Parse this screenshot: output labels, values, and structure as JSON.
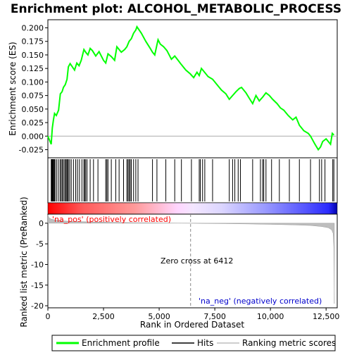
{
  "chart_data": {
    "type": "line",
    "title": "Enrichment plot: ALCOHOL_METABOLIC_PROCESS",
    "top_panel": {
      "ylabel": "Enrichment score (ES)",
      "ylim": [
        -0.04,
        0.215
      ],
      "yticks": [
        -0.025,
        0.0,
        0.025,
        0.05,
        0.075,
        0.1,
        0.125,
        0.15,
        0.175,
        0.2
      ],
      "ytick_labels": [
        "-0.025",
        "0.000",
        "0.025",
        "0.050",
        "0.075",
        "0.100",
        "0.125",
        "0.150",
        "0.175",
        "0.200"
      ],
      "series": [
        {
          "name": "Enrichment profile",
          "color": "#00ff00",
          "x": [
            0,
            150,
            200,
            250,
            300,
            380,
            480,
            560,
            640,
            700,
            780,
            860,
            920,
            1000,
            1100,
            1200,
            1300,
            1400,
            1500,
            1620,
            1700,
            1800,
            1900,
            2000,
            2150,
            2300,
            2500,
            2600,
            2700,
            2850,
            3000,
            3100,
            3300,
            3450,
            3550,
            3650,
            3750,
            3850,
            3950,
            4000,
            4200,
            4400,
            4600,
            4700,
            4800,
            4950,
            5050,
            5200,
            5350,
            5550,
            5700,
            5850,
            6000,
            6200,
            6400,
            6550,
            6700,
            6800,
            6900,
            7000,
            7200,
            7400,
            7600,
            7800,
            8000,
            8150,
            8300,
            8450,
            8600,
            8700,
            8900,
            9050,
            9200,
            9350,
            9500,
            9650,
            9800,
            9950,
            10100,
            10300,
            10450,
            10600,
            10800,
            11000,
            11150,
            11300,
            11500,
            11700,
            11800,
            12000,
            12150,
            12250,
            12350,
            12500,
            12700,
            12780,
            12850
          ],
          "y": [
            0.0,
            -0.015,
            0.015,
            0.03,
            0.042,
            0.038,
            0.048,
            0.078,
            0.082,
            0.09,
            0.095,
            0.105,
            0.128,
            0.134,
            0.128,
            0.122,
            0.135,
            0.13,
            0.14,
            0.16,
            0.155,
            0.15,
            0.162,
            0.158,
            0.148,
            0.156,
            0.14,
            0.135,
            0.152,
            0.147,
            0.14,
            0.165,
            0.155,
            0.16,
            0.165,
            0.175,
            0.18,
            0.19,
            0.196,
            0.202,
            0.19,
            0.175,
            0.162,
            0.155,
            0.15,
            0.178,
            0.17,
            0.165,
            0.158,
            0.142,
            0.148,
            0.14,
            0.132,
            0.122,
            0.115,
            0.108,
            0.118,
            0.112,
            0.125,
            0.12,
            0.11,
            0.105,
            0.095,
            0.085,
            0.078,
            0.068,
            0.075,
            0.082,
            0.088,
            0.09,
            0.08,
            0.07,
            0.06,
            0.075,
            0.065,
            0.072,
            0.08,
            0.075,
            0.068,
            0.06,
            0.052,
            0.048,
            0.038,
            0.03,
            0.035,
            0.02,
            0.01,
            0.005,
            0.0,
            -0.015,
            -0.025,
            -0.02,
            -0.01,
            -0.005,
            -0.015,
            0.005,
            0.002
          ]
        }
      ]
    },
    "hits": {
      "name": "Hits",
      "positions": [
        150,
        170,
        190,
        210,
        240,
        260,
        290,
        320,
        390,
        470,
        550,
        600,
        650,
        700,
        760,
        800,
        850,
        880,
        920,
        980,
        1050,
        1150,
        1250,
        1330,
        1420,
        1530,
        1620,
        1650,
        1700,
        1760,
        1900,
        2050,
        2250,
        2600,
        2650,
        2700,
        2850,
        3050,
        3200,
        3400,
        3550,
        3600,
        3650,
        3700,
        3750,
        3850,
        3950,
        4050,
        4700,
        4900,
        5300,
        5700,
        6000,
        6450,
        6800,
        6850,
        6950,
        7050,
        7400,
        8150,
        8300,
        8400,
        8550,
        8650,
        9200,
        9550,
        9650,
        9700,
        9800,
        10050,
        10400,
        10850,
        11300,
        11800,
        12200,
        12300,
        12450,
        12800,
        12850
      ]
    },
    "bottom_panel": {
      "ylabel": "Ranked list metric (PreRanked)",
      "xlabel": "Rank in Ordered Dataset",
      "ylim": [
        -20.5,
        2.2
      ],
      "yticks": [
        0,
        -5,
        -10,
        -15,
        -20
      ],
      "ytick_labels": [
        "0",
        "-5",
        "-10",
        "-15",
        "-20"
      ],
      "xlim": [
        0,
        13000
      ],
      "xticks": [
        0,
        2500,
        5000,
        7500,
        10000,
        12500
      ],
      "xtick_labels": [
        "0",
        "2,500",
        "5,000",
        "7,500",
        "10,000",
        "12,500"
      ],
      "metric_curve": {
        "name": "Ranking metric scores",
        "color": "#bebebe",
        "x": [
          0,
          50,
          150,
          300,
          600,
          1000,
          2000,
          3000,
          4000,
          5000,
          6000,
          6412,
          7000,
          8000,
          9000,
          10000,
          11000,
          11800,
          12300,
          12600,
          12750,
          12820,
          12850,
          12870
        ],
        "y": [
          2.0,
          1.3,
          1.0,
          0.8,
          0.6,
          0.45,
          0.3,
          0.2,
          0.12,
          0.07,
          0.02,
          0.0,
          -0.05,
          -0.1,
          -0.18,
          -0.28,
          -0.4,
          -0.55,
          -0.8,
          -1.1,
          -1.6,
          -2.5,
          -6.0,
          -19.5
        ]
      },
      "zero_cross_rank": 6412,
      "annotations": {
        "pos": "'na_pos' (positively correlated)",
        "neg": "'na_neg' (negatively correlated)",
        "zero_cross": "Zero cross at 6412"
      },
      "colors": {
        "pos": "#ff0000",
        "neg": "#0000ff"
      }
    },
    "legend": {
      "placement": "bottom",
      "entries": [
        {
          "label": "Enrichment profile",
          "color": "#00ff00"
        },
        {
          "label": "Hits",
          "color": "#000000"
        },
        {
          "label": "Ranking metric scores",
          "color": "#bebebe"
        }
      ]
    }
  }
}
